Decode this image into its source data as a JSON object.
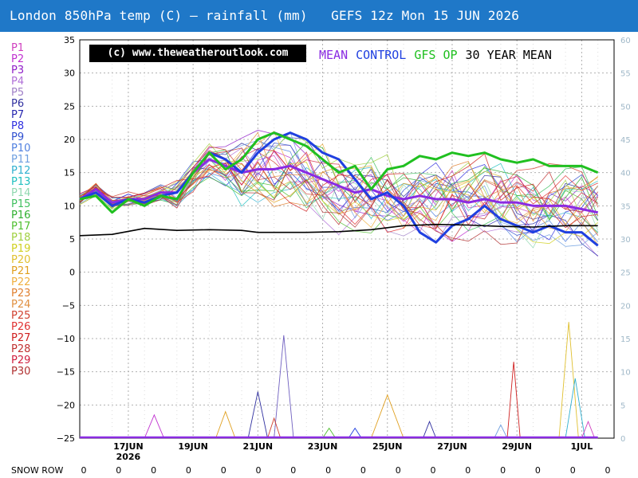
{
  "title": "London 850hPa temp (C) — rainfall (mm)   GEFS 12z Mon 15 JUN 2026",
  "copyright": "(c) www.theweatheroutlook.com",
  "legend": [
    {
      "label": "MEAN",
      "color": "#8a2be2"
    },
    {
      "label": "CONTROL",
      "color": "#2040e0"
    },
    {
      "label": "GFS OP",
      "color": "#20c020"
    },
    {
      "label": "30 YEAR MEAN",
      "color": "#000000"
    }
  ],
  "members": [
    {
      "label": "P1",
      "color": "#d040c0"
    },
    {
      "label": "P2",
      "color": "#c030d0"
    },
    {
      "label": "P3",
      "color": "#9020c8"
    },
    {
      "label": "P4",
      "color": "#b070d8"
    },
    {
      "label": "P5",
      "color": "#a080c8"
    },
    {
      "label": "P6",
      "color": "#3030a0"
    },
    {
      "label": "P7",
      "color": "#2828b0"
    },
    {
      "label": "P8",
      "color": "#3030e0"
    },
    {
      "label": "P9",
      "color": "#3050d0"
    },
    {
      "label": "P10",
      "color": "#5080e0"
    },
    {
      "label": "P11",
      "color": "#70a0e0"
    },
    {
      "label": "P12",
      "color": "#30b0d0"
    },
    {
      "label": "P13",
      "color": "#20c0c0"
    },
    {
      "label": "P14",
      "color": "#90d8b0"
    },
    {
      "label": "P15",
      "color": "#40c060"
    },
    {
      "label": "P16",
      "color": "#30b030"
    },
    {
      "label": "P17",
      "color": "#50c030"
    },
    {
      "label": "P18",
      "color": "#a0d040"
    },
    {
      "label": "P19",
      "color": "#d0d020"
    },
    {
      "label": "P20",
      "color": "#e0c030"
    },
    {
      "label": "P21",
      "color": "#e0a020"
    },
    {
      "label": "P22",
      "color": "#f0b040"
    },
    {
      "label": "P23",
      "color": "#e08030"
    },
    {
      "label": "P24",
      "color": "#e09040"
    },
    {
      "label": "P25",
      "color": "#d04030"
    },
    {
      "label": "P26",
      "color": "#e03030"
    },
    {
      "label": "P27",
      "color": "#d02020"
    },
    {
      "label": "P28",
      "color": "#c03030"
    },
    {
      "label": "P29",
      "color": "#d02040"
    },
    {
      "label": "P30",
      "color": "#b03030"
    }
  ],
  "snow_row": {
    "label": "SNOW ROW",
    "values": [
      "0",
      "0",
      "0",
      "0",
      "0",
      "0",
      "0",
      "0",
      "0",
      "0",
      "0",
      "0",
      "0",
      "0",
      "0",
      "0"
    ]
  },
  "chart_data": {
    "type": "line",
    "x_range_days": [
      0,
      16.5
    ],
    "x_ticks": [
      {
        "day": 1.5,
        "label": "17JUN",
        "sublabel": "2026"
      },
      {
        "day": 3.5,
        "label": "19JUN",
        "sublabel": ""
      },
      {
        "day": 5.5,
        "label": "21JUN",
        "sublabel": ""
      },
      {
        "day": 7.5,
        "label": "23JUN",
        "sublabel": ""
      },
      {
        "day": 9.5,
        "label": "25JUN",
        "sublabel": ""
      },
      {
        "day": 11.5,
        "label": "27JUN",
        "sublabel": ""
      },
      {
        "day": 13.5,
        "label": "29JUN",
        "sublabel": ""
      },
      {
        "day": 15.5,
        "label": "1JUL",
        "sublabel": ""
      }
    ],
    "left_axis": {
      "min": -25,
      "max": 35,
      "ticks": [
        35,
        30,
        25,
        20,
        15,
        10,
        5,
        0,
        -5,
        -10,
        -15,
        -20,
        -25
      ]
    },
    "right_axis": {
      "min": 0,
      "max": 60,
      "ticks": [
        60,
        55,
        50,
        45,
        40,
        35,
        30,
        25,
        20,
        15,
        10,
        5,
        0
      ]
    },
    "series": [
      {
        "name": "MEAN",
        "color": "#8a2be2",
        "width": 3,
        "points": [
          [
            0,
            11
          ],
          [
            0.5,
            12.5
          ],
          [
            1,
            10.5
          ],
          [
            1.5,
            11
          ],
          [
            2,
            11
          ],
          [
            2.5,
            12
          ],
          [
            3,
            12
          ],
          [
            3.5,
            15
          ],
          [
            4,
            17
          ],
          [
            4.5,
            16
          ],
          [
            5,
            15
          ],
          [
            5.5,
            15.5
          ],
          [
            6,
            15.5
          ],
          [
            6.5,
            16
          ],
          [
            7,
            15
          ],
          [
            7.5,
            14
          ],
          [
            8,
            13
          ],
          [
            8.5,
            12
          ],
          [
            9,
            12.5
          ],
          [
            9.5,
            11.5
          ],
          [
            10,
            11
          ],
          [
            10.5,
            11.5
          ],
          [
            11,
            11
          ],
          [
            11.5,
            11
          ],
          [
            12,
            10.5
          ],
          [
            12.5,
            11
          ],
          [
            13,
            10.5
          ],
          [
            13.5,
            10.5
          ],
          [
            14,
            10
          ],
          [
            14.5,
            10
          ],
          [
            15,
            10
          ],
          [
            15.5,
            9.5
          ],
          [
            16,
            9
          ]
        ]
      },
      {
        "name": "CONTROL",
        "color": "#2040e0",
        "width": 3,
        "points": [
          [
            0,
            11
          ],
          [
            0.5,
            12
          ],
          [
            1,
            10
          ],
          [
            1.5,
            11
          ],
          [
            2,
            10.5
          ],
          [
            2.5,
            11.5
          ],
          [
            3,
            12
          ],
          [
            3.5,
            15
          ],
          [
            4,
            18
          ],
          [
            4.5,
            17
          ],
          [
            5,
            15
          ],
          [
            5.5,
            18
          ],
          [
            6,
            20
          ],
          [
            6.5,
            21
          ],
          [
            7,
            20
          ],
          [
            7.5,
            18
          ],
          [
            8,
            17
          ],
          [
            8.5,
            14
          ],
          [
            9,
            11
          ],
          [
            9.5,
            12
          ],
          [
            10,
            10
          ],
          [
            10.5,
            6
          ],
          [
            11,
            4.5
          ],
          [
            11.5,
            7
          ],
          [
            12,
            8
          ],
          [
            12.5,
            10
          ],
          [
            13,
            8
          ],
          [
            13.5,
            7
          ],
          [
            14,
            6
          ],
          [
            14.5,
            7
          ],
          [
            15,
            6
          ],
          [
            15.5,
            6
          ],
          [
            16,
            4
          ]
        ]
      },
      {
        "name": "GFS OP",
        "color": "#20c020",
        "width": 3,
        "points": [
          [
            0,
            11
          ],
          [
            0.5,
            11.5
          ],
          [
            1,
            9
          ],
          [
            1.5,
            11
          ],
          [
            2,
            10
          ],
          [
            2.5,
            11.5
          ],
          [
            3,
            11
          ],
          [
            3.5,
            15
          ],
          [
            4,
            18
          ],
          [
            4.5,
            15.5
          ],
          [
            5,
            17
          ],
          [
            5.5,
            20
          ],
          [
            6,
            21
          ],
          [
            6.5,
            20
          ],
          [
            7,
            19
          ],
          [
            7.5,
            17
          ],
          [
            8,
            15
          ],
          [
            8.5,
            16
          ],
          [
            9,
            12.5
          ],
          [
            9.5,
            15.5
          ],
          [
            10,
            16
          ],
          [
            10.5,
            17.5
          ],
          [
            11,
            17
          ],
          [
            11.5,
            18
          ],
          [
            12,
            17.5
          ],
          [
            12.5,
            18
          ],
          [
            13,
            17
          ],
          [
            13.5,
            16.5
          ],
          [
            14,
            17
          ],
          [
            14.5,
            16
          ],
          [
            15,
            16
          ],
          [
            15.5,
            16
          ],
          [
            16,
            15
          ]
        ]
      },
      {
        "name": "30 YEAR MEAN",
        "color": "#000000",
        "width": 1.6,
        "points": [
          [
            0,
            5.5
          ],
          [
            1,
            5.7
          ],
          [
            2,
            6.6
          ],
          [
            3,
            6.3
          ],
          [
            4,
            6.4
          ],
          [
            5,
            6.3
          ],
          [
            5.5,
            6
          ],
          [
            6,
            6
          ],
          [
            7,
            6
          ],
          [
            8,
            6.1
          ],
          [
            9,
            6.4
          ],
          [
            10,
            7
          ],
          [
            11,
            7.2
          ],
          [
            12,
            7.1
          ],
          [
            13,
            6.9
          ],
          [
            14,
            6.8
          ],
          [
            15,
            7
          ],
          [
            16,
            7
          ]
        ]
      }
    ],
    "rain_series": [
      {
        "color": "#c030d0",
        "points": [
          [
            2,
            0
          ],
          [
            2.3,
            3.5
          ],
          [
            2.6,
            0
          ]
        ]
      },
      {
        "color": "#3030a0",
        "points": [
          [
            5.2,
            0
          ],
          [
            5.5,
            7
          ],
          [
            5.8,
            0
          ]
        ]
      },
      {
        "color": "#7060c0",
        "points": [
          [
            6,
            0
          ],
          [
            6.3,
            15.5
          ],
          [
            6.6,
            0
          ]
        ]
      },
      {
        "color": "#e0a020",
        "points": [
          [
            4.2,
            0
          ],
          [
            4.5,
            4
          ],
          [
            4.8,
            0
          ]
        ]
      },
      {
        "color": "#d04030",
        "points": [
          [
            5.8,
            0
          ],
          [
            6,
            3
          ],
          [
            6.2,
            0
          ]
        ]
      },
      {
        "color": "#e0a020",
        "points": [
          [
            9,
            0
          ],
          [
            9.5,
            6.5
          ],
          [
            10,
            0
          ]
        ]
      },
      {
        "color": "#2040e0",
        "points": [
          [
            8.3,
            0
          ],
          [
            8.5,
            1.5
          ],
          [
            8.7,
            0
          ]
        ]
      },
      {
        "color": "#3030a0",
        "points": [
          [
            10.6,
            0
          ],
          [
            10.8,
            2.5
          ],
          [
            11,
            0
          ]
        ]
      },
      {
        "color": "#d02020",
        "points": [
          [
            13.2,
            0
          ],
          [
            13.4,
            11.5
          ],
          [
            13.6,
            0
          ]
        ]
      },
      {
        "color": "#e0c030",
        "points": [
          [
            14.8,
            0
          ],
          [
            15.1,
            17.5
          ],
          [
            15.4,
            0
          ]
        ]
      },
      {
        "color": "#30b0d0",
        "points": [
          [
            15,
            0
          ],
          [
            15.3,
            9
          ],
          [
            15.6,
            0
          ]
        ]
      },
      {
        "color": "#50c030",
        "points": [
          [
            7.5,
            0
          ],
          [
            7.7,
            1.5
          ],
          [
            7.9,
            0
          ]
        ]
      },
      {
        "color": "#d040c0",
        "points": [
          [
            15.5,
            0
          ],
          [
            15.7,
            2.5
          ],
          [
            15.9,
            0
          ]
        ]
      },
      {
        "color": "#70a0e0",
        "points": [
          [
            12.8,
            0
          ],
          [
            13,
            2
          ],
          [
            13.2,
            0
          ]
        ]
      }
    ]
  }
}
